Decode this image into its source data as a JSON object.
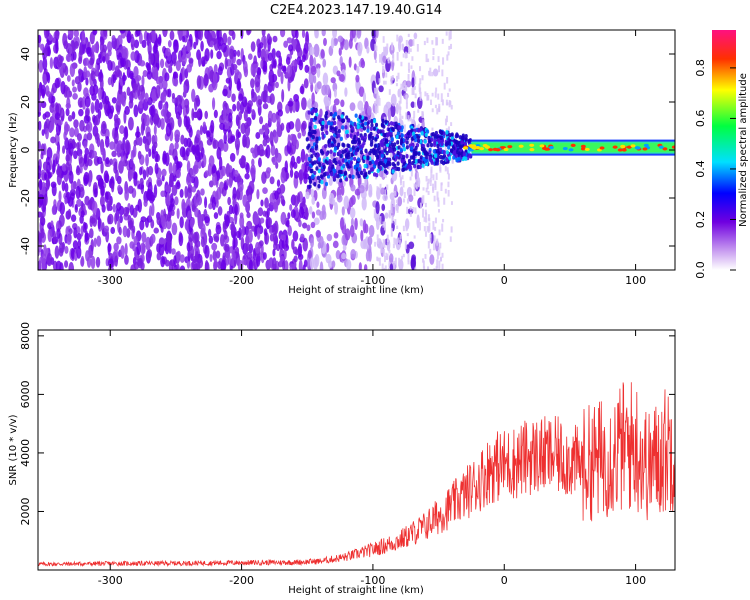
{
  "title": "C2E4.2023.147.19.40.G14",
  "chart_data": [
    {
      "type": "heatmap",
      "xlabel": "Height of straight line (km)",
      "ylabel": "Frequency (Hz)",
      "xlim": [
        -355,
        130
      ],
      "ylim": [
        -50,
        50
      ],
      "x_ticks": [
        -300,
        -200,
        -100,
        0,
        100
      ],
      "y_ticks": [
        -40,
        -20,
        0,
        20,
        40
      ],
      "colorbar": {
        "label": "Normalized spectral amplitude",
        "range": [
          0,
          0.95
        ],
        "ticks": [
          0.0,
          0.2,
          0.4,
          0.6,
          0.8
        ],
        "colormap": [
          "#ffffff",
          "#8a2be2",
          "#0000ff",
          "#00ffff",
          "#00ff00",
          "#ffff00",
          "#ff0000",
          "#ff1493"
        ]
      },
      "features": {
        "carrier_frequency_hz": 1,
        "noise_region_x": [
          -355,
          -60
        ],
        "signal_region_x": [
          -150,
          130
        ]
      }
    },
    {
      "type": "line",
      "xlabel": "Height of straight line (km)",
      "ylabel": "SNR (10 * v/v)",
      "xlim": [
        -355,
        130
      ],
      "ylim": [
        0,
        8200
      ],
      "x_ticks": [
        -300,
        -200,
        -100,
        0,
        100
      ],
      "y_ticks": [
        2000,
        4000,
        6000,
        8000
      ],
      "series": [
        {
          "color": "#ee3030",
          "x": [
            -355,
            -300,
            -250,
            -200,
            -160,
            -140,
            -120,
            -100,
            -80,
            -60,
            -40,
            -20,
            -10,
            0,
            10,
            20,
            40,
            60,
            80,
            90,
            100,
            110,
            120,
            130
          ],
          "y": [
            200,
            220,
            230,
            250,
            260,
            300,
            450,
            700,
            1000,
            1500,
            2200,
            3000,
            3500,
            3600,
            3700,
            3900,
            3900,
            3600,
            3900,
            4200,
            4300,
            3500,
            4000,
            4400
          ]
        }
      ]
    }
  ]
}
